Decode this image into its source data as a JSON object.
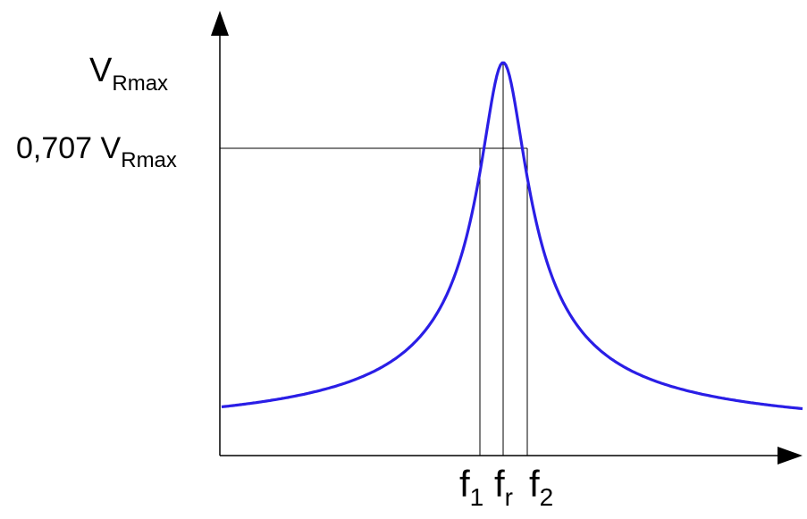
{
  "labels": {
    "y_max_main": "V",
    "y_max_sub": "R",
    "y_max_subsub": "max",
    "y_level_prefix": "0,707 V",
    "y_level_sub": "R",
    "y_level_subsub": "max",
    "f1_main": "f",
    "f1_sub": "1",
    "fr_main": "f",
    "fr_sub": "r",
    "f2_main": "f",
    "f2_sub": "2"
  },
  "colors": {
    "curve": "#2a1ee6",
    "axes": "#000000"
  },
  "curve": {
    "type": "resonance",
    "peak_relative": 1.0,
    "half_power_relative": 0.707
  }
}
